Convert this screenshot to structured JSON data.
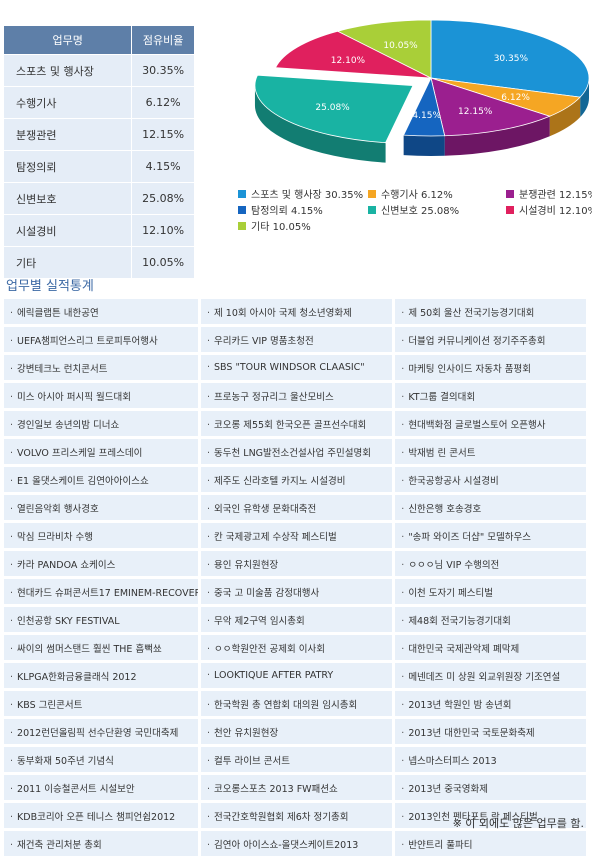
{
  "share_table": {
    "headers": [
      "업무명",
      "점유비율"
    ],
    "rows": [
      {
        "name": "스포츠 및 행사장",
        "ratio": "30.35%"
      },
      {
        "name": "수행기사",
        "ratio": "6.12%"
      },
      {
        "name": "분쟁관련",
        "ratio": "12.15%"
      },
      {
        "name": "탐정의뢰",
        "ratio": "4.15%"
      },
      {
        "name": "신변보호",
        "ratio": "25.08%"
      },
      {
        "name": "시설경비",
        "ratio": "12.10%"
      },
      {
        "name": "기타",
        "ratio": "10.05%"
      }
    ]
  },
  "chart_data": {
    "type": "pie",
    "title": "",
    "slices": [
      {
        "label": "스포츠 및 행사장",
        "value": 30.35,
        "display": "30.35%",
        "color": "#1b93d6"
      },
      {
        "label": "수행기사",
        "value": 6.12,
        "display": "6.12%",
        "color": "#f5a623"
      },
      {
        "label": "분쟁관련",
        "value": 12.15,
        "display": "12.15%",
        "color": "#9b1f8f"
      },
      {
        "label": "탐정의뢰",
        "value": 4.15,
        "display": "4.15%",
        "color": "#1565c0"
      },
      {
        "label": "신변보호",
        "value": 25.08,
        "display": "25.08%",
        "color": "#19b3a3"
      },
      {
        "label": "시설경비",
        "value": 12.1,
        "display": "12.10%",
        "color": "#e0205e"
      },
      {
        "label": "기타",
        "value": 10.05,
        "display": "10.05%",
        "color": "#a9cf38"
      }
    ],
    "legend_placement": "bottom"
  },
  "legend": [
    {
      "text": "스포츠 및 행사장 30.35%",
      "color": "#1b93d6"
    },
    {
      "text": "수행기사 6.12%",
      "color": "#f5a623"
    },
    {
      "text": "분쟁관련 12.15%",
      "color": "#9b1f8f"
    },
    {
      "text": "탐정의뢰 4.15%",
      "color": "#1565c0"
    },
    {
      "text": "신변보호 25.08%",
      "color": "#19b3a3"
    },
    {
      "text": "시설경비 12.10%",
      "color": "#e0205e"
    },
    {
      "text": "기타 10.05%",
      "color": "#a9cf38"
    }
  ],
  "section_title": "업무별 실적통계",
  "records": [
    [
      "에릭클랩튼 내한공연",
      "제 10회 아시아 국제 청소년영화제",
      "제 50회 울산 전국기능경기대회"
    ],
    [
      "UEFA챔피언스리그 트로피투어행사",
      "우리카드 VIP 명품초청전",
      "더블업 커뮤니케이션 정기주주총회"
    ],
    [
      "강변테크노 런치콘서트",
      "SBS \"TOUR WINDSOR CLAASIC\"",
      "마케팅 인사이드 자동차 품평회"
    ],
    [
      "미스 아시아 퍼시픽 월드대회",
      "프로농구 정규리그 울산모비스",
      "KT그룹 결의대회"
    ],
    [
      "경인일보 송년의밤 디너쇼",
      "코오롱 제55회 한국오픈 골프선수대회",
      "현대백화점 글로벌스토어 오픈행사"
    ],
    [
      "VOLVO 프리스케일 프레스데이",
      "동두천 LNG발전소건설사업 주민설명회",
      "박재범 린 콘서트"
    ],
    [
      "E1 올댓스케이트 김연아아이스쇼",
      "제주도 신라호텔 카지노 시설경비",
      "한국공항공사 시설경비"
    ],
    [
      "열린음악회 행사경호",
      "외국인 유학생 문화대축전",
      "신한은행 호송경호"
    ],
    [
      "막심 므라비차 수행",
      "칸 국제광고제 수상작 페스티벌",
      "\"송파 와이즈 더샵\" 모델하우스"
    ],
    [
      "카라 PANDOA 쇼케이스",
      "용인 유치원현장",
      "ㅇㅇㅇ님 VIP 수행의전"
    ],
    [
      "현대카드 슈퍼콘서트17 EMINEM-RECOVER",
      "중국 고 미술품 감정대행사",
      "이천 도자기 페스티벌"
    ],
    [
      "인천공항 SKY FESTIVAL",
      "무악 제2구역 임시총회",
      "제48회 전국기능경기대회"
    ],
    [
      "싸이의 썸머스탠드 훨씬 THE 흠뻑쑈",
      "ㅇㅇ학원안전 공제회 이사회",
      "대한민국 국제관악제 폐막제"
    ],
    [
      "KLPGA한화금융클래식 2012",
      "LOOKTIQUE AFTER PATRY",
      "메넨데즈 미 상원 외교위원장 기조연설"
    ],
    [
      "KBS 그린콘서트",
      "한국학원 총 연합회 대의원 임시총회",
      "2013년 학원인 밤 송년회"
    ],
    [
      "2012런던올림픽 선수단환영 국민대축제",
      "천안 유치원현장",
      "2013년 대한민국 국토문화축제"
    ],
    [
      "동부화재 50주년 기념식",
      "컬투 라이브 콘서트",
      "넵스마스터피스 2013"
    ],
    [
      "2011 이승철콘서트 시설보안",
      "코오롱스포츠 2013 FW패션쇼",
      "2013년 중국영화제"
    ],
    [
      "KDB코리아 오픈 테니스 챔피언쉽2012",
      "전국간호학원협회 제6차 정기총회",
      "2013인천 펜타포트 락 페스티벌"
    ],
    [
      "재건축 관리처분 총회",
      "김연아 아이스쇼-올댓스케이트2013",
      "반얀트리 풀파티"
    ]
  ],
  "footnote": "※ 이 외에도 많은 업무를 함."
}
